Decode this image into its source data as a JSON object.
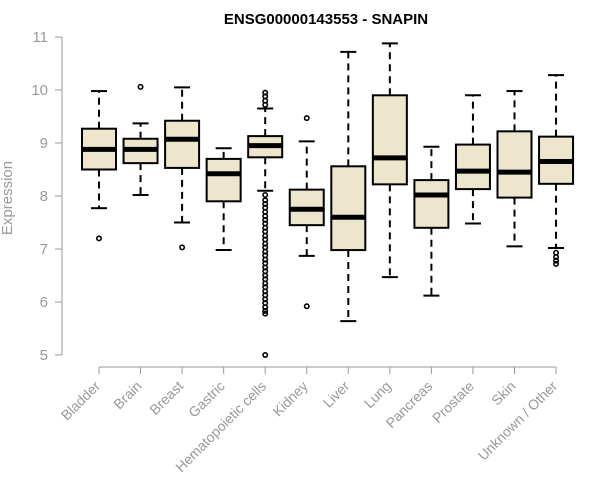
{
  "chart_data": {
    "type": "boxplot",
    "title": "ENSG00000143553 - SNAPIN",
    "xlabel": "",
    "ylabel": "Expression",
    "ylim": [
      5,
      11
    ],
    "yticks": [
      5,
      6,
      7,
      8,
      9,
      10,
      11
    ],
    "colors": {
      "box_fill": "#ede6cd",
      "stroke": "#000000",
      "axis": "#999999"
    },
    "categories": [
      "Bladder",
      "Brain",
      "Breast",
      "Gastric",
      "Hematopoietic cells",
      "Kidney",
      "Liver",
      "Lung",
      "Pancreas",
      "Prostate",
      "Skin",
      "Unknown / Other"
    ],
    "boxes": [
      {
        "label": "Bladder",
        "whisker_low": 7.77,
        "q1": 8.5,
        "median": 8.88,
        "q3": 9.27,
        "whisker_high": 9.98,
        "outliers": [
          7.2
        ]
      },
      {
        "label": "Brain",
        "whisker_low": 8.02,
        "q1": 8.62,
        "median": 8.88,
        "q3": 9.08,
        "whisker_high": 9.37,
        "outliers": [
          10.06
        ]
      },
      {
        "label": "Breast",
        "whisker_low": 7.5,
        "q1": 8.53,
        "median": 9.07,
        "q3": 9.42,
        "whisker_high": 10.05,
        "outliers": [
          7.03
        ]
      },
      {
        "label": "Gastric",
        "whisker_low": 6.98,
        "q1": 7.9,
        "median": 8.42,
        "q3": 8.7,
        "whisker_high": 8.9,
        "outliers": []
      },
      {
        "label": "Hematopoietic cells",
        "whisker_low": 8.1,
        "q1": 8.73,
        "median": 8.95,
        "q3": 9.13,
        "whisker_high": 9.65,
        "outliers": [
          9.72,
          9.8,
          9.88,
          9.95,
          8.02,
          7.92,
          7.85,
          7.78,
          7.7,
          7.62,
          7.55,
          7.48,
          7.4,
          7.33,
          7.25,
          7.18,
          7.1,
          7.03,
          6.95,
          6.88,
          6.8,
          6.73,
          6.65,
          6.58,
          6.5,
          6.43,
          6.35,
          6.28,
          6.2,
          6.13,
          6.05,
          5.98,
          5.9,
          5.83,
          5.78,
          5.0
        ]
      },
      {
        "label": "Kidney",
        "whisker_low": 6.87,
        "q1": 7.45,
        "median": 7.75,
        "q3": 8.12,
        "whisker_high": 9.03,
        "outliers": [
          9.47,
          5.92
        ]
      },
      {
        "label": "Liver",
        "whisker_low": 5.64,
        "q1": 6.98,
        "median": 7.6,
        "q3": 8.56,
        "whisker_high": 10.72,
        "outliers": []
      },
      {
        "label": "Lung",
        "whisker_low": 6.47,
        "q1": 8.22,
        "median": 8.72,
        "q3": 9.9,
        "whisker_high": 10.88,
        "outliers": []
      },
      {
        "label": "Pancreas",
        "whisker_low": 6.12,
        "q1": 7.4,
        "median": 8.02,
        "q3": 8.3,
        "whisker_high": 8.93,
        "outliers": []
      },
      {
        "label": "Prostate",
        "whisker_low": 7.48,
        "q1": 8.13,
        "median": 8.47,
        "q3": 8.97,
        "whisker_high": 9.9,
        "outliers": []
      },
      {
        "label": "Skin",
        "whisker_low": 7.05,
        "q1": 7.97,
        "median": 8.45,
        "q3": 9.22,
        "whisker_high": 9.98,
        "outliers": []
      },
      {
        "label": "Unknown / Other",
        "whisker_low": 7.02,
        "q1": 8.23,
        "median": 8.65,
        "q3": 9.12,
        "whisker_high": 10.28,
        "outliers": [
          6.93,
          6.85,
          6.78,
          6.72
        ]
      }
    ]
  }
}
